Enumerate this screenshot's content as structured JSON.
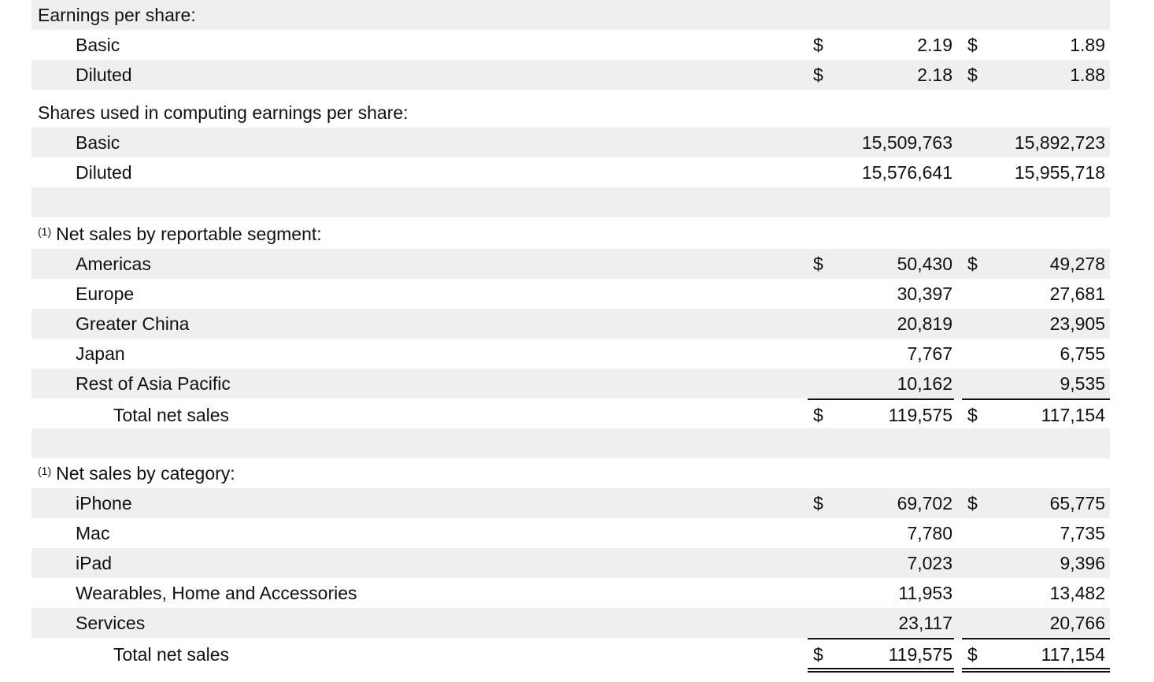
{
  "eps": {
    "header": "Earnings per share:",
    "basic": {
      "label": "Basic",
      "c1": "2.19",
      "c2": "1.89"
    },
    "diluted": {
      "label": "Diluted",
      "c1": "2.18",
      "c2": "1.88"
    }
  },
  "shares": {
    "header": "Shares used in computing earnings per share:",
    "basic": {
      "label": "Basic",
      "c1": "15,509,763",
      "c2": "15,892,723"
    },
    "diluted": {
      "label": "Diluted",
      "c1": "15,576,641",
      "c2": "15,955,718"
    }
  },
  "currency_symbol": "$",
  "footnote_marker": "(1)",
  "segment": {
    "header": "Net sales by reportable segment:",
    "rows": [
      {
        "label": "Americas",
        "c1": "50,430",
        "c2": "49,278"
      },
      {
        "label": "Europe",
        "c1": "30,397",
        "c2": "27,681"
      },
      {
        "label": "Greater China",
        "c1": "20,819",
        "c2": "23,905"
      },
      {
        "label": "Japan",
        "c1": "7,767",
        "c2": "6,755"
      },
      {
        "label": "Rest of Asia Pacific",
        "c1": "10,162",
        "c2": "9,535"
      }
    ],
    "total": {
      "label": "Total net sales",
      "c1": "119,575",
      "c2": "117,154"
    }
  },
  "category": {
    "header": "Net sales by category:",
    "rows": [
      {
        "label": "iPhone",
        "c1": "69,702",
        "c2": "65,775"
      },
      {
        "label": "Mac",
        "c1": "7,780",
        "c2": "7,735"
      },
      {
        "label": "iPad",
        "c1": "7,023",
        "c2": "9,396"
      },
      {
        "label": "Wearables, Home and Accessories",
        "c1": "11,953",
        "c2": "13,482"
      },
      {
        "label": "Services",
        "c1": "23,117",
        "c2": "20,766"
      }
    ],
    "total": {
      "label": "Total net sales",
      "c1": "119,575",
      "c2": "117,154"
    }
  }
}
